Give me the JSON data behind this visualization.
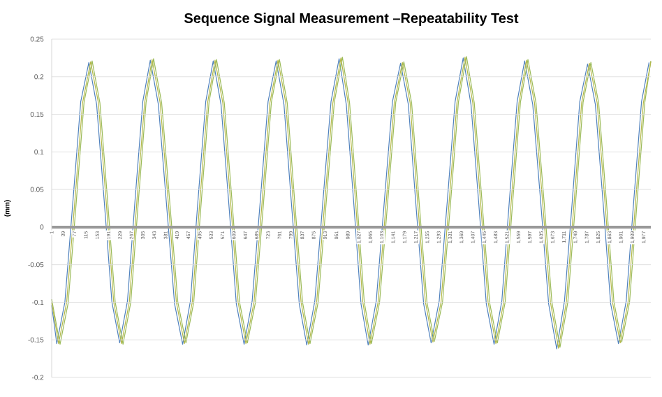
{
  "chart_data": {
    "type": "line",
    "title": "Sequence Signal Measurement –Repeatability Test",
    "ylabel": "(mm)",
    "x": [
      1,
      24,
      51,
      78,
      104,
      131,
      157,
      183,
      208,
      234,
      260,
      285,
      311,
      336,
      363,
      390,
      417,
      444,
      470,
      495,
      521,
      546,
      572,
      598,
      623,
      649,
      676,
      703,
      729,
      756,
      782,
      807,
      833,
      858,
      885,
      912,
      939,
      966,
      990,
      1015,
      1039,
      1063,
      1090,
      1117,
      1144,
      1171,
      1197,
      1222,
      1248,
      1273,
      1300,
      1327,
      1353,
      1380,
      1406,
      1432,
      1457,
      1483,
      1509,
      1534,
      1560,
      1585,
      1612,
      1639,
      1665,
      1692,
      1718,
      1744,
      1769,
      1795,
      1821,
      1847,
      1872,
      1898,
      1924,
      1949,
      1975,
      2000
    ],
    "series": [
      {
        "color": "#4f81bd",
        "x": [
          1,
          18,
          45,
          72,
          98,
          125,
          151,
          177,
          202,
          228,
          254,
          279,
          305,
          330,
          357,
          384,
          411,
          438,
          464,
          489,
          515,
          540,
          566,
          592,
          617,
          643,
          670,
          697,
          723,
          750,
          776,
          801,
          827,
          852,
          879,
          906,
          933,
          960,
          984,
          1009,
          1033,
          1057,
          1084,
          1111,
          1138,
          1165,
          1191,
          1216,
          1242,
          1267,
          1294,
          1321,
          1347,
          1374,
          1400,
          1426,
          1451,
          1477,
          1503,
          1528,
          1554,
          1579,
          1606,
          1633,
          1659,
          1686,
          1712,
          1738,
          1763,
          1789,
          1815,
          1841,
          1866,
          1892,
          1918,
          1943,
          1969,
          1994
        ],
        "values": [
          -0.104,
          -0.155,
          -0.1,
          0.035,
          0.167,
          0.219,
          0.163,
          0.031,
          -0.1,
          -0.154,
          -0.098,
          0.035,
          0.167,
          0.222,
          0.163,
          0.031,
          -0.102,
          -0.156,
          -0.098,
          0.035,
          0.167,
          0.221,
          0.163,
          0.031,
          -0.102,
          -0.156,
          -0.098,
          0.035,
          0.167,
          0.221,
          0.163,
          0.031,
          -0.102,
          -0.157,
          -0.098,
          0.035,
          0.167,
          0.224,
          0.163,
          0.031,
          -0.102,
          -0.157,
          -0.098,
          0.035,
          0.167,
          0.218,
          0.163,
          0.031,
          -0.102,
          -0.154,
          -0.098,
          0.035,
          0.167,
          0.225,
          0.163,
          0.031,
          -0.102,
          -0.156,
          -0.098,
          0.035,
          0.167,
          0.221,
          0.163,
          0.031,
          -0.102,
          -0.162,
          -0.098,
          0.035,
          0.167,
          0.217,
          0.163,
          0.031,
          -0.102,
          -0.155,
          -0.098,
          0.035,
          0.167,
          0.219
        ]
      },
      {
        "color": "#9bbb59",
        "x": [
          1,
          29,
          56,
          83,
          109,
          136,
          162,
          188,
          213,
          239,
          265,
          290,
          316,
          341,
          368,
          395,
          422,
          449,
          475,
          500,
          526,
          551,
          577,
          603,
          628,
          654,
          681,
          708,
          734,
          761,
          787,
          812,
          838,
          863,
          890,
          917,
          944,
          971,
          995,
          1020,
          1044,
          1068,
          1095,
          1122,
          1149,
          1176,
          1202,
          1227,
          1253,
          1278,
          1305,
          1332,
          1358,
          1385,
          1411,
          1437,
          1462,
          1488,
          1514,
          1539,
          1565,
          1590,
          1617,
          1644,
          1670,
          1697,
          1723,
          1749,
          1774,
          1800,
          1826,
          1852,
          1877,
          1903,
          1929,
          1954,
          1980,
          2000
        ],
        "values": [
          -0.096,
          -0.156,
          -0.101,
          0.033,
          0.166,
          0.221,
          0.165,
          0.033,
          -0.1,
          -0.156,
          -0.1,
          0.033,
          0.166,
          0.224,
          0.165,
          0.033,
          -0.1,
          -0.154,
          -0.1,
          0.033,
          0.166,
          0.223,
          0.165,
          0.033,
          -0.1,
          -0.154,
          -0.1,
          0.033,
          0.166,
          0.223,
          0.165,
          0.033,
          -0.1,
          -0.155,
          -0.1,
          0.033,
          0.166,
          0.226,
          0.165,
          0.033,
          -0.1,
          -0.155,
          -0.1,
          0.033,
          0.166,
          0.22,
          0.165,
          0.033,
          -0.1,
          -0.152,
          -0.1,
          0.033,
          0.166,
          0.227,
          0.165,
          0.033,
          -0.1,
          -0.154,
          -0.1,
          0.033,
          0.166,
          0.223,
          0.165,
          0.033,
          -0.1,
          -0.16,
          -0.1,
          0.033,
          0.166,
          0.219,
          0.165,
          0.033,
          -0.1,
          -0.153,
          -0.1,
          0.033,
          0.166,
          0.221
        ]
      },
      {
        "color": "#b5b84a",
        "values": [
          -0.1,
          -0.155,
          -0.1,
          0.033,
          0.165,
          0.22,
          0.165,
          0.033,
          -0.1,
          -0.155,
          -0.1,
          0.033,
          0.165,
          0.223,
          0.165,
          0.033,
          -0.1,
          -0.155,
          -0.1,
          0.033,
          0.165,
          0.222,
          0.165,
          0.033,
          -0.1,
          -0.155,
          -0.1,
          0.033,
          0.165,
          0.222,
          0.165,
          0.033,
          -0.1,
          -0.156,
          -0.1,
          0.033,
          0.165,
          0.225,
          0.165,
          0.033,
          -0.1,
          -0.156,
          -0.1,
          0.033,
          0.165,
          0.219,
          0.165,
          0.033,
          -0.1,
          -0.153,
          -0.1,
          0.033,
          0.165,
          0.226,
          0.165,
          0.033,
          -0.1,
          -0.155,
          -0.1,
          0.033,
          0.165,
          0.222,
          0.165,
          0.033,
          -0.1,
          -0.161,
          -0.1,
          0.033,
          0.165,
          0.218,
          0.165,
          0.033,
          -0.1,
          -0.154,
          -0.1,
          0.033,
          0.165,
          0.22
        ]
      }
    ],
    "xlim": [
      1,
      2000
    ],
    "xticks": [
      1,
      39,
      77,
      115,
      153,
      191,
      229,
      267,
      305,
      343,
      381,
      419,
      457,
      495,
      533,
      571,
      609,
      647,
      685,
      723,
      761,
      799,
      837,
      875,
      913,
      951,
      989,
      {
        "value": 1027,
        "label": "1,027"
      },
      {
        "value": 1065,
        "label": "1,065"
      },
      {
        "value": 1103,
        "label": "1,103"
      },
      {
        "value": 1141,
        "label": "1,141"
      },
      {
        "value": 1179,
        "label": "1,179"
      },
      {
        "value": 1217,
        "label": "1,217"
      },
      {
        "value": 1255,
        "label": "1,255"
      },
      {
        "value": 1293,
        "label": "1,293"
      },
      {
        "value": 1331,
        "label": "1,331"
      },
      {
        "value": 1369,
        "label": "1,369"
      },
      {
        "value": 1407,
        "label": "1,407"
      },
      {
        "value": 1445,
        "label": "1,445"
      },
      {
        "value": 1483,
        "label": "1,483"
      },
      {
        "value": 1521,
        "label": "1,521"
      },
      {
        "value": 1559,
        "label": "1,559"
      },
      {
        "value": 1597,
        "label": "1,597"
      },
      {
        "value": 1635,
        "label": "1,635"
      },
      {
        "value": 1673,
        "label": "1,673"
      },
      {
        "value": 1711,
        "label": "1,711"
      },
      {
        "value": 1749,
        "label": "1,749"
      },
      {
        "value": 1787,
        "label": "1,787"
      },
      {
        "value": 1825,
        "label": "1,825"
      },
      {
        "value": 1863,
        "label": "1,863"
      },
      {
        "value": 1901,
        "label": "1,901"
      },
      {
        "value": 1939,
        "label": "1,939"
      },
      {
        "value": 1977,
        "label": "1,977"
      }
    ],
    "ylim": [
      -0.2,
      0.25
    ],
    "yticks": [
      -0.2,
      -0.15,
      -0.1,
      -0.05,
      0,
      0.05,
      0.1,
      0.15,
      0.2,
      0.25
    ],
    "grid": "y",
    "marker": "none",
    "line_style": "solid",
    "legend": false
  }
}
